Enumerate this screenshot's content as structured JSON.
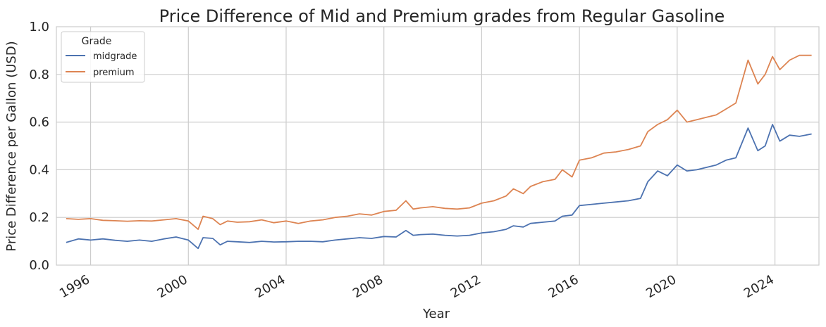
{
  "chart_data": {
    "type": "line",
    "title": "Price Difference of Mid and Premium grades from Regular Gasoline",
    "xlabel": "Year",
    "ylabel": "Price Difference per Gallon (USD)",
    "xlim": [
      1994.6,
      2025.8
    ],
    "ylim": [
      0.0,
      1.0
    ],
    "xticks": [
      "1996",
      "2000",
      "2004",
      "2008",
      "2012",
      "2016",
      "2020",
      "2024"
    ],
    "yticks": [
      "0.0",
      "0.2",
      "0.4",
      "0.6",
      "0.8",
      "1.0"
    ],
    "grid": true,
    "legend": {
      "title": "Grade",
      "placement": "top-left"
    },
    "series": [
      {
        "name": "midgrade",
        "color": "#4C72B0",
        "points": [
          [
            1995.0,
            0.095
          ],
          [
            1995.5,
            0.11
          ],
          [
            1996.0,
            0.105
          ],
          [
            1996.5,
            0.11
          ],
          [
            1997.0,
            0.104
          ],
          [
            1997.5,
            0.1
          ],
          [
            1998.0,
            0.105
          ],
          [
            1998.5,
            0.1
          ],
          [
            1999.0,
            0.11
          ],
          [
            1999.5,
            0.118
          ],
          [
            2000.0,
            0.105
          ],
          [
            2000.4,
            0.07
          ],
          [
            2000.6,
            0.115
          ],
          [
            2001.0,
            0.112
          ],
          [
            2001.3,
            0.085
          ],
          [
            2001.6,
            0.1
          ],
          [
            2002.0,
            0.098
          ],
          [
            2002.5,
            0.095
          ],
          [
            2003.0,
            0.1
          ],
          [
            2003.5,
            0.097
          ],
          [
            2004.0,
            0.098
          ],
          [
            2004.5,
            0.1
          ],
          [
            2005.0,
            0.1
          ],
          [
            2005.5,
            0.098
          ],
          [
            2006.0,
            0.105
          ],
          [
            2006.5,
            0.11
          ],
          [
            2007.0,
            0.115
          ],
          [
            2007.5,
            0.112
          ],
          [
            2008.0,
            0.12
          ],
          [
            2008.5,
            0.118
          ],
          [
            2008.9,
            0.145
          ],
          [
            2009.2,
            0.125
          ],
          [
            2009.5,
            0.128
          ],
          [
            2010.0,
            0.13
          ],
          [
            2010.5,
            0.125
          ],
          [
            2011.0,
            0.122
          ],
          [
            2011.5,
            0.125
          ],
          [
            2012.0,
            0.135
          ],
          [
            2012.5,
            0.14
          ],
          [
            2013.0,
            0.15
          ],
          [
            2013.3,
            0.165
          ],
          [
            2013.7,
            0.16
          ],
          [
            2014.0,
            0.175
          ],
          [
            2014.5,
            0.18
          ],
          [
            2015.0,
            0.185
          ],
          [
            2015.3,
            0.205
          ],
          [
            2015.7,
            0.21
          ],
          [
            2016.0,
            0.25
          ],
          [
            2016.5,
            0.255
          ],
          [
            2017.0,
            0.26
          ],
          [
            2017.5,
            0.265
          ],
          [
            2018.0,
            0.27
          ],
          [
            2018.5,
            0.28
          ],
          [
            2018.8,
            0.35
          ],
          [
            2019.2,
            0.395
          ],
          [
            2019.6,
            0.375
          ],
          [
            2020.0,
            0.42
          ],
          [
            2020.4,
            0.395
          ],
          [
            2020.8,
            0.4
          ],
          [
            2021.2,
            0.41
          ],
          [
            2021.6,
            0.42
          ],
          [
            2022.0,
            0.44
          ],
          [
            2022.4,
            0.45
          ],
          [
            2022.9,
            0.575
          ],
          [
            2023.3,
            0.48
          ],
          [
            2023.6,
            0.5
          ],
          [
            2023.9,
            0.59
          ],
          [
            2024.2,
            0.52
          ],
          [
            2024.6,
            0.545
          ],
          [
            2025.0,
            0.54
          ],
          [
            2025.5,
            0.55
          ]
        ]
      },
      {
        "name": "premium",
        "color": "#DD8452",
        "points": [
          [
            1995.0,
            0.195
          ],
          [
            1995.5,
            0.192
          ],
          [
            1996.0,
            0.195
          ],
          [
            1996.5,
            0.188
          ],
          [
            1997.0,
            0.186
          ],
          [
            1997.5,
            0.184
          ],
          [
            1998.0,
            0.186
          ],
          [
            1998.5,
            0.185
          ],
          [
            1999.0,
            0.19
          ],
          [
            1999.5,
            0.195
          ],
          [
            2000.0,
            0.185
          ],
          [
            2000.4,
            0.15
          ],
          [
            2000.6,
            0.205
          ],
          [
            2001.0,
            0.195
          ],
          [
            2001.3,
            0.17
          ],
          [
            2001.6,
            0.185
          ],
          [
            2002.0,
            0.18
          ],
          [
            2002.5,
            0.182
          ],
          [
            2003.0,
            0.19
          ],
          [
            2003.5,
            0.178
          ],
          [
            2004.0,
            0.185
          ],
          [
            2004.5,
            0.175
          ],
          [
            2005.0,
            0.185
          ],
          [
            2005.5,
            0.19
          ],
          [
            2006.0,
            0.2
          ],
          [
            2006.5,
            0.205
          ],
          [
            2007.0,
            0.215
          ],
          [
            2007.5,
            0.21
          ],
          [
            2008.0,
            0.225
          ],
          [
            2008.5,
            0.23
          ],
          [
            2008.9,
            0.27
          ],
          [
            2009.2,
            0.235
          ],
          [
            2009.5,
            0.24
          ],
          [
            2010.0,
            0.245
          ],
          [
            2010.5,
            0.238
          ],
          [
            2011.0,
            0.235
          ],
          [
            2011.5,
            0.24
          ],
          [
            2012.0,
            0.26
          ],
          [
            2012.5,
            0.27
          ],
          [
            2013.0,
            0.29
          ],
          [
            2013.3,
            0.32
          ],
          [
            2013.7,
            0.3
          ],
          [
            2014.0,
            0.33
          ],
          [
            2014.5,
            0.35
          ],
          [
            2015.0,
            0.36
          ],
          [
            2015.3,
            0.4
          ],
          [
            2015.7,
            0.37
          ],
          [
            2016.0,
            0.44
          ],
          [
            2016.5,
            0.45
          ],
          [
            2017.0,
            0.47
          ],
          [
            2017.5,
            0.475
          ],
          [
            2018.0,
            0.485
          ],
          [
            2018.5,
            0.5
          ],
          [
            2018.8,
            0.56
          ],
          [
            2019.2,
            0.59
          ],
          [
            2019.6,
            0.61
          ],
          [
            2020.0,
            0.65
          ],
          [
            2020.4,
            0.6
          ],
          [
            2020.8,
            0.61
          ],
          [
            2021.2,
            0.62
          ],
          [
            2021.6,
            0.63
          ],
          [
            2022.0,
            0.655
          ],
          [
            2022.4,
            0.68
          ],
          [
            2022.9,
            0.86
          ],
          [
            2023.3,
            0.76
          ],
          [
            2023.6,
            0.8
          ],
          [
            2023.9,
            0.875
          ],
          [
            2024.2,
            0.82
          ],
          [
            2024.6,
            0.86
          ],
          [
            2025.0,
            0.88
          ],
          [
            2025.5,
            0.88
          ]
        ]
      }
    ]
  }
}
